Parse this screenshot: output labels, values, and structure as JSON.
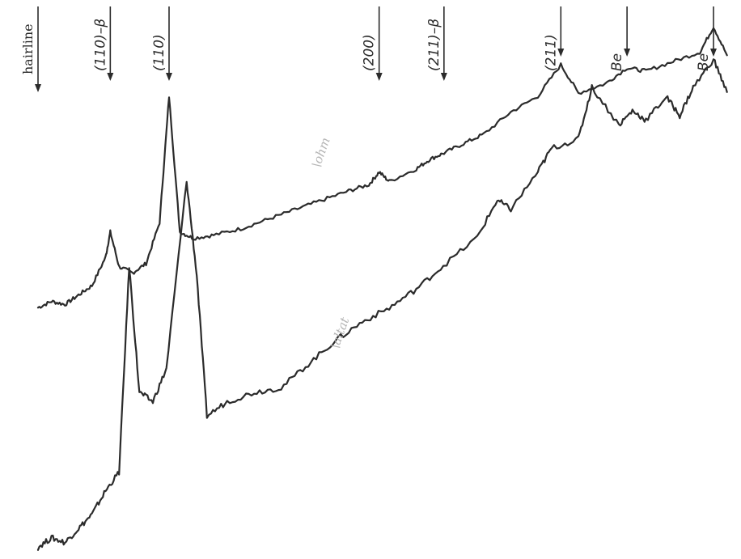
{
  "chart_data": {
    "type": "line",
    "title": "",
    "xlabel": "",
    "ylabel": "",
    "grid": false,
    "legend": "none",
    "markers": [
      {
        "label": "hairline",
        "pos": 0.0
      },
      {
        "label": "(110)–β",
        "pos": 0.107
      },
      {
        "label": "(110)",
        "pos": 0.194
      },
      {
        "label": "(200)",
        "pos": 0.505
      },
      {
        "label": "(211)–β",
        "pos": 0.601
      },
      {
        "label": "(211)",
        "pos": 0.774
      },
      {
        "label": "Be",
        "pos": 0.872
      },
      {
        "label": "Be",
        "pos": 1.0
      }
    ],
    "series": [
      {
        "name": "",
        "x": [
          0.0,
          0.02,
          0.04,
          0.06,
          0.08,
          0.1,
          0.107,
          0.12,
          0.14,
          0.16,
          0.18,
          0.194,
          0.21,
          0.23,
          0.26,
          0.3,
          0.34,
          0.38,
          0.42,
          0.46,
          0.49,
          0.505,
          0.52,
          0.56,
          0.58,
          0.601,
          0.63,
          0.66,
          0.7,
          0.74,
          0.774,
          0.8,
          0.84,
          0.872,
          0.9,
          0.94,
          0.98,
          1.0,
          1.02
        ],
        "y": [
          0.03,
          0.05,
          0.04,
          0.07,
          0.1,
          0.19,
          0.27,
          0.16,
          0.14,
          0.17,
          0.3,
          0.7,
          0.27,
          0.25,
          0.26,
          0.28,
          0.31,
          0.34,
          0.37,
          0.4,
          0.42,
          0.46,
          0.43,
          0.47,
          0.5,
          0.52,
          0.55,
          0.58,
          0.65,
          0.7,
          0.8,
          0.71,
          0.74,
          0.79,
          0.78,
          0.81,
          0.84,
          0.92,
          0.83
        ]
      },
      {
        "name": "",
        "x": [
          0.0,
          0.02,
          0.04,
          0.06,
          0.08,
          0.1,
          0.12,
          0.135,
          0.15,
          0.17,
          0.19,
          0.22,
          0.235,
          0.25,
          0.28,
          0.32,
          0.36,
          0.4,
          0.44,
          0.48,
          0.52,
          0.56,
          0.6,
          0.65,
          0.68,
          0.7,
          0.74,
          0.76,
          0.8,
          0.82,
          0.86,
          0.88,
          0.9,
          0.93,
          0.95,
          0.97,
          1.0,
          1.02
        ],
        "y": [
          0.02,
          0.04,
          0.03,
          0.06,
          0.09,
          0.14,
          0.18,
          0.62,
          0.35,
          0.33,
          0.4,
          0.8,
          0.6,
          0.3,
          0.33,
          0.35,
          0.36,
          0.41,
          0.46,
          0.5,
          0.53,
          0.57,
          0.62,
          0.68,
          0.76,
          0.74,
          0.82,
          0.87,
          0.89,
          1.0,
          0.92,
          0.95,
          0.93,
          0.98,
          0.94,
          1.0,
          1.06,
          0.99
        ]
      }
    ],
    "annotations": [
      "\\ohm",
      "\\altat"
    ]
  }
}
